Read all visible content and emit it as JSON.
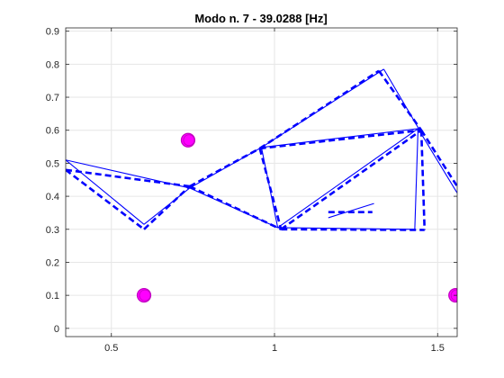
{
  "colors": {
    "background": "#ffffff",
    "axes_bg": "#ffffff",
    "axis_line": "#262626",
    "grid": "#e6e6e6",
    "structure": "#0000ff",
    "marker_fill": "#ff00ff",
    "marker_edge": "#c000c0"
  },
  "chart_data": {
    "type": "line",
    "title": "Modo n. 7 - 39.0288 [Hz]",
    "xlabel": "",
    "ylabel": "",
    "xlim": [
      0.36,
      1.56
    ],
    "ylim": [
      -0.025,
      0.91
    ],
    "grid": true,
    "x_ticks": [
      0.5,
      1,
      1.5
    ],
    "x_tick_labels": [
      "0.5",
      "1",
      "1.5"
    ],
    "y_ticks": [
      0,
      0.1,
      0.2,
      0.3,
      0.4,
      0.5,
      0.6,
      0.7,
      0.8,
      0.9
    ],
    "y_tick_labels": [
      "0",
      "0.1",
      "0.2",
      "0.3",
      "0.4",
      "0.5",
      "0.6",
      "0.7",
      "0.8",
      "0.9"
    ],
    "series": [
      {
        "style": "solid",
        "segments": [
          [
            [
              0.36,
              0.51
            ],
            [
              0.74,
              0.425
            ]
          ],
          [
            [
              0.36,
              0.51
            ],
            [
              0.6,
              0.315
            ]
          ],
          [
            [
              0.6,
              0.315
            ],
            [
              0.74,
              0.425
            ]
          ],
          [
            [
              0.74,
              0.425
            ],
            [
              0.96,
              0.548
            ]
          ],
          [
            [
              0.74,
              0.425
            ],
            [
              1.01,
              0.305
            ]
          ],
          [
            [
              0.96,
              0.548
            ],
            [
              1.01,
              0.305
            ]
          ],
          [
            [
              0.96,
              0.548
            ],
            [
              1.335,
              0.785
            ]
          ],
          [
            [
              0.96,
              0.548
            ],
            [
              1.44,
              0.605
            ]
          ],
          [
            [
              1.335,
              0.785
            ],
            [
              1.445,
              0.6
            ]
          ],
          [
            [
              1.01,
              0.305
            ],
            [
              1.44,
              0.605
            ]
          ],
          [
            [
              1.01,
              0.305
            ],
            [
              1.43,
              0.3
            ]
          ],
          [
            [
              1.44,
              0.605
            ],
            [
              1.43,
              0.3
            ]
          ],
          [
            [
              1.44,
              0.605
            ],
            [
              1.56,
              0.41
            ]
          ],
          [
            [
              1.165,
              0.335
            ],
            [
              1.305,
              0.378
            ]
          ]
        ]
      },
      {
        "style": "dashed",
        "segments": [
          [
            [
              0.36,
              0.48
            ],
            [
              0.74,
              0.43
            ]
          ],
          [
            [
              0.36,
              0.48
            ],
            [
              0.6,
              0.3
            ]
          ],
          [
            [
              0.6,
              0.3
            ],
            [
              0.74,
              0.43
            ]
          ],
          [
            [
              0.74,
              0.43
            ],
            [
              0.955,
              0.545
            ]
          ],
          [
            [
              0.74,
              0.43
            ],
            [
              1.02,
              0.3
            ]
          ],
          [
            [
              0.955,
              0.545
            ],
            [
              1.02,
              0.3
            ]
          ],
          [
            [
              0.955,
              0.545
            ],
            [
              1.32,
              0.78
            ]
          ],
          [
            [
              0.955,
              0.545
            ],
            [
              1.45,
              0.6
            ]
          ],
          [
            [
              1.32,
              0.78
            ],
            [
              1.45,
              0.6
            ]
          ],
          [
            [
              1.02,
              0.3
            ],
            [
              1.45,
              0.6
            ]
          ],
          [
            [
              1.02,
              0.3
            ],
            [
              1.46,
              0.298
            ]
          ],
          [
            [
              1.45,
              0.6
            ],
            [
              1.46,
              0.298
            ]
          ],
          [
            [
              1.45,
              0.6
            ],
            [
              1.56,
              0.43
            ]
          ],
          [
            [
              1.165,
              0.352
            ],
            [
              1.3,
              0.352
            ]
          ]
        ]
      }
    ],
    "markers": [
      {
        "x": 0.6,
        "y": 0.1
      },
      {
        "x": 0.735,
        "y": 0.57
      },
      {
        "x": 1.555,
        "y": 0.1
      }
    ]
  }
}
